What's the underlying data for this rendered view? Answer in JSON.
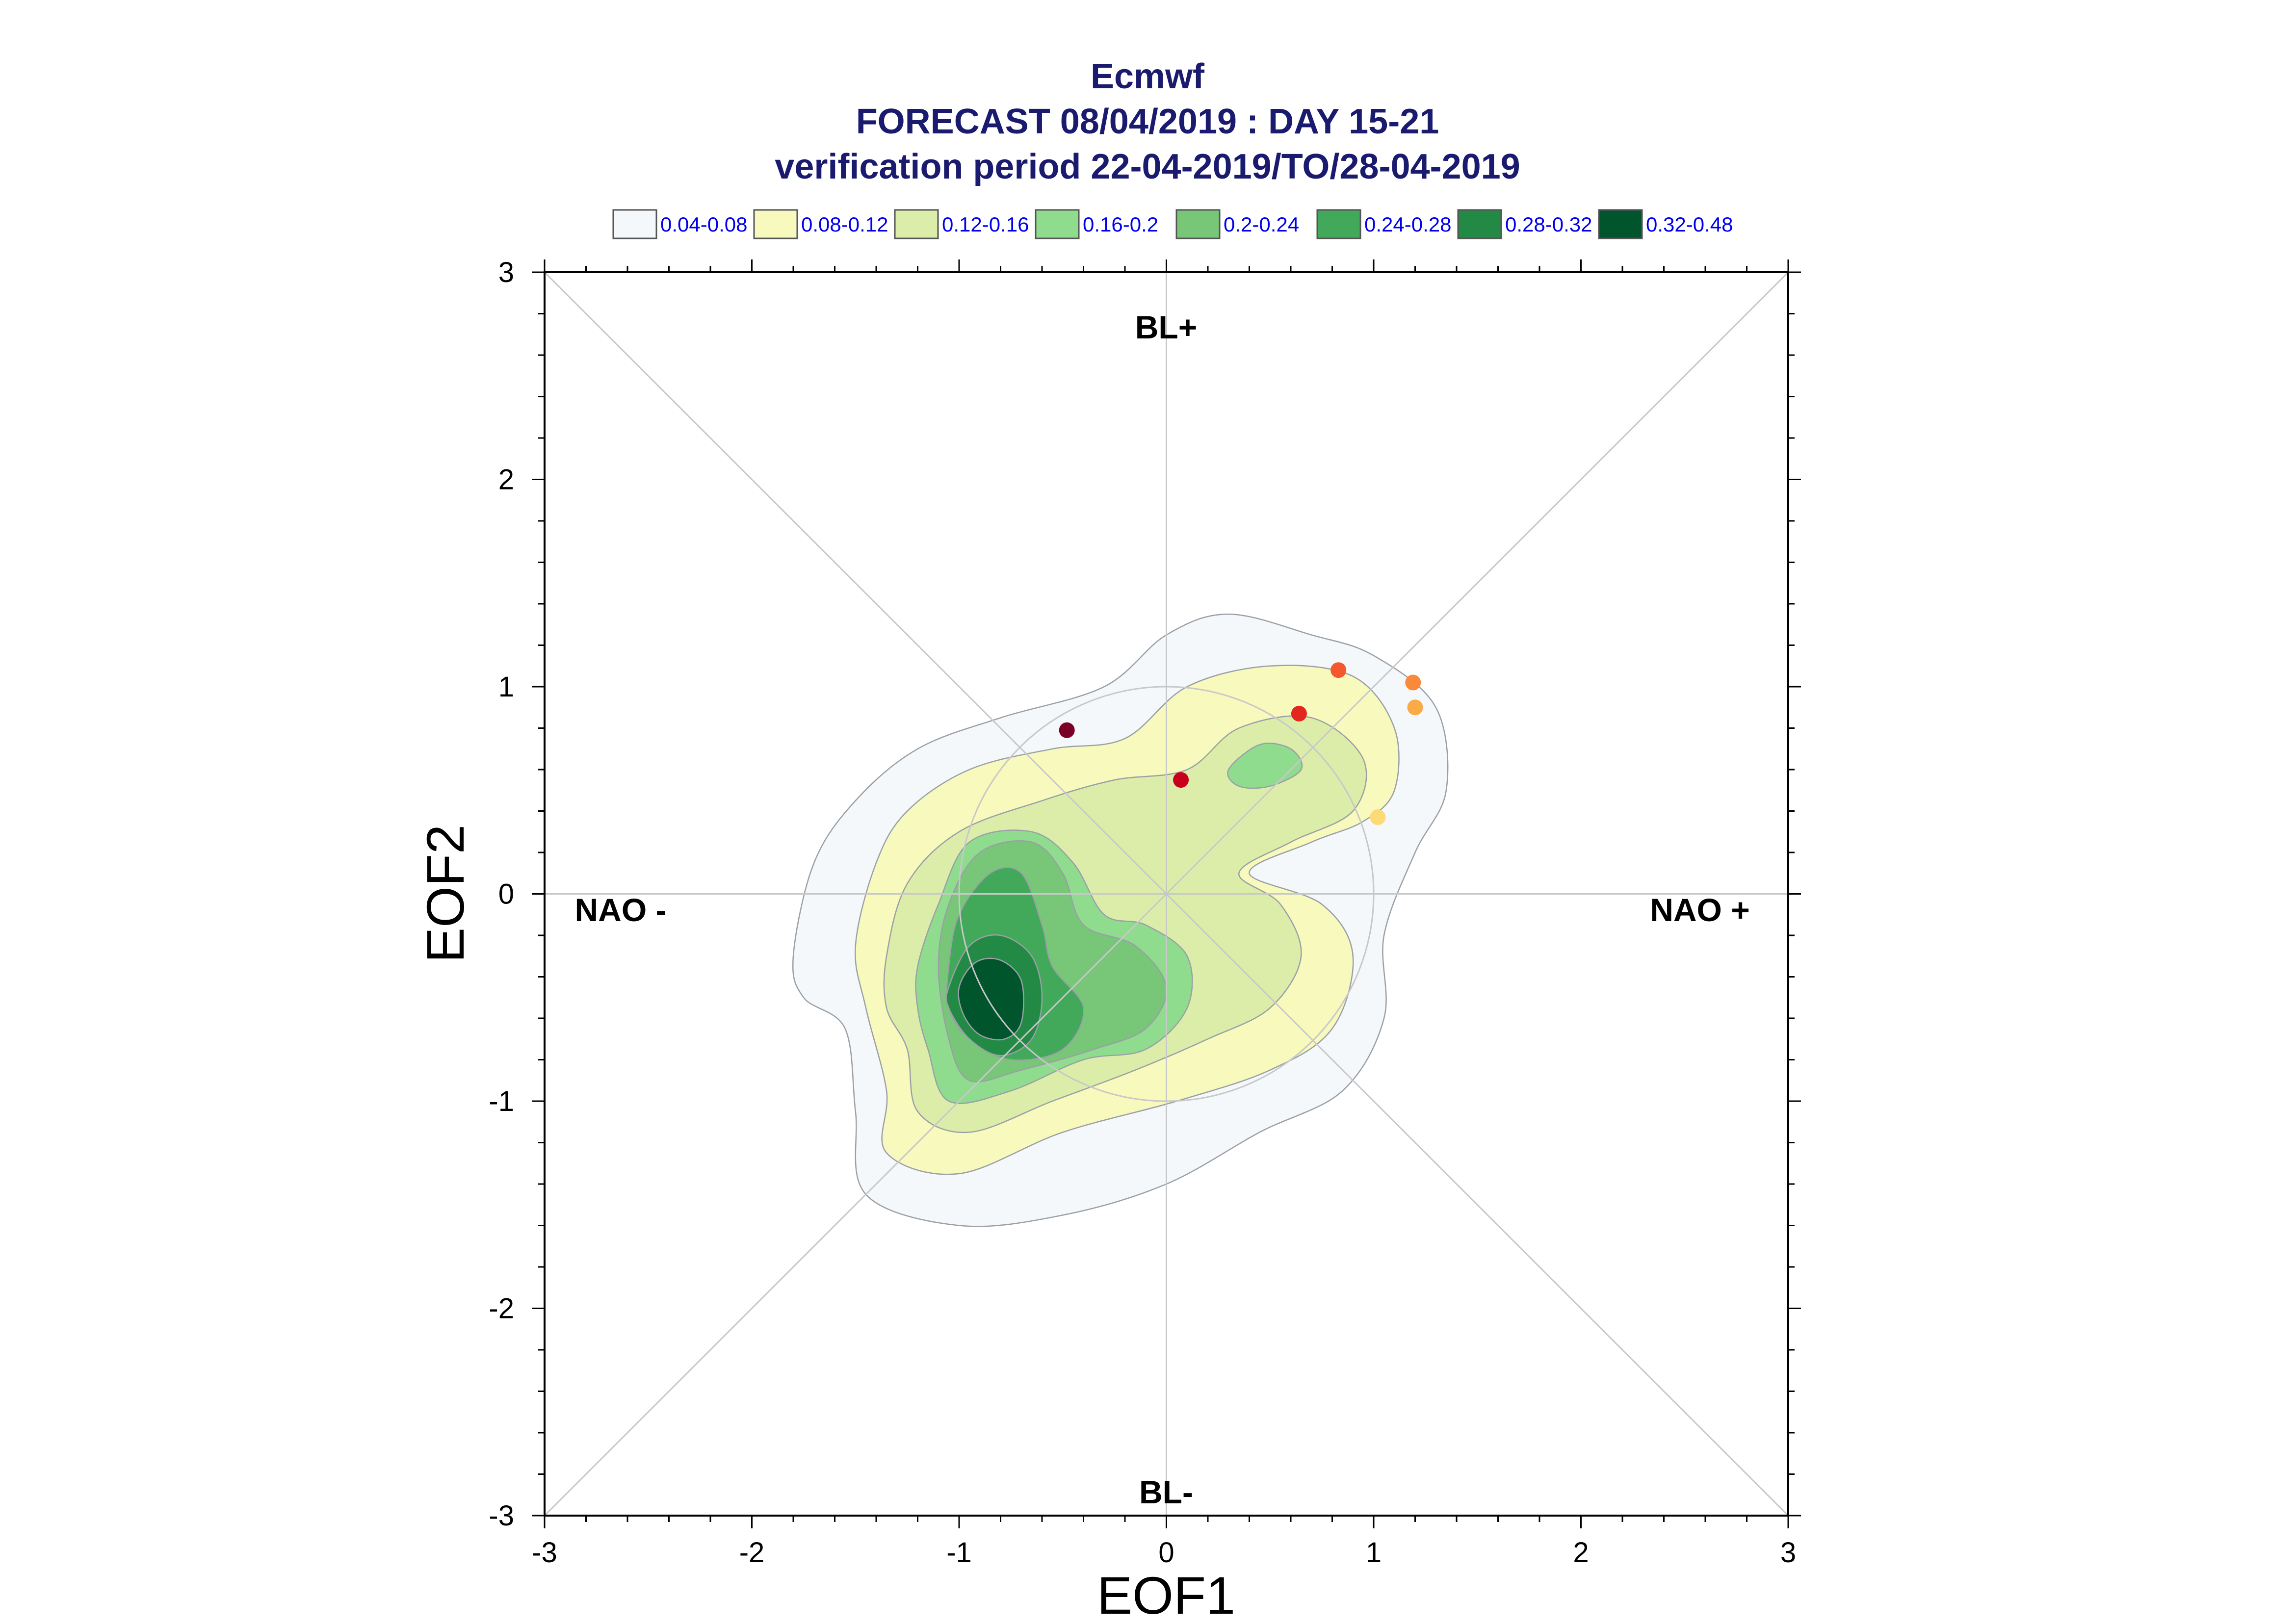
{
  "chart_data": {
    "type": "contour-scatter",
    "title_lines": [
      "Ecmwf",
      "FORECAST 08/04/2019 : DAY 15-21",
      "verification period 22-04-2019/TO/28-04-2019"
    ],
    "xlabel": "EOF1",
    "ylabel": "EOF2",
    "xlim": [
      -3,
      3
    ],
    "ylim": [
      -3,
      3
    ],
    "xticks": [
      "-3",
      "-2",
      "-1",
      "0",
      "1",
      "2",
      "3"
    ],
    "yticks": [
      "-3",
      "-2",
      "-1",
      "0",
      "1",
      "2",
      "3"
    ],
    "grid": false,
    "legend_position": "top",
    "regime_labels": {
      "top": "BL+",
      "bottom": "BL-",
      "left": "NAO -",
      "right": "NAO +"
    },
    "legend": [
      {
        "label": "0.04-0.08",
        "color": "#f4f8fb"
      },
      {
        "label": "0.08-0.12",
        "color": "#f7f9bd"
      },
      {
        "label": "0.12-0.16",
        "color": "#dcedaa"
      },
      {
        "label": "0.16-0.2",
        "color": "#90dc8e"
      },
      {
        "label": "0.2-0.24",
        "color": "#78c678"
      },
      {
        "label": "0.24-0.28",
        "color": "#42a95a"
      },
      {
        "label": "0.28-0.32",
        "color": "#238a45"
      },
      {
        "label": "0.32-0.48",
        "color": "#00552d"
      }
    ],
    "density_levels": [
      {
        "level": "0.04-0.08",
        "color": "#f4f8fb",
        "outline": [
          [
            -1.8,
            -0.3
          ],
          [
            -1.7,
            0.15
          ],
          [
            -1.5,
            0.45
          ],
          [
            -1.2,
            0.7
          ],
          [
            -0.8,
            0.85
          ],
          [
            -0.3,
            1.0
          ],
          [
            0.0,
            1.25
          ],
          [
            0.3,
            1.35
          ],
          [
            0.7,
            1.25
          ],
          [
            1.0,
            1.15
          ],
          [
            1.3,
            0.9
          ],
          [
            1.35,
            0.5
          ],
          [
            1.2,
            0.2
          ],
          [
            1.05,
            -0.2
          ],
          [
            1.05,
            -0.6
          ],
          [
            0.85,
            -0.95
          ],
          [
            0.45,
            -1.15
          ],
          [
            0.0,
            -1.4
          ],
          [
            -0.5,
            -1.55
          ],
          [
            -1.0,
            -1.6
          ],
          [
            -1.45,
            -1.45
          ],
          [
            -1.5,
            -1.05
          ],
          [
            -1.55,
            -0.65
          ],
          [
            -1.75,
            -0.5
          ]
        ]
      },
      {
        "level": "0.08-0.12",
        "color": "#f7f9bd",
        "outline": [
          [
            -1.5,
            -0.25
          ],
          [
            -1.4,
            0.15
          ],
          [
            -1.25,
            0.4
          ],
          [
            -0.95,
            0.6
          ],
          [
            -0.55,
            0.7
          ],
          [
            -0.2,
            0.75
          ],
          [
            0.1,
            1.0
          ],
          [
            0.5,
            1.1
          ],
          [
            0.9,
            1.05
          ],
          [
            1.1,
            0.8
          ],
          [
            1.1,
            0.5
          ],
          [
            0.95,
            0.35
          ],
          [
            0.7,
            0.25
          ],
          [
            0.4,
            0.1
          ],
          [
            0.75,
            -0.05
          ],
          [
            0.9,
            -0.3
          ],
          [
            0.8,
            -0.65
          ],
          [
            0.5,
            -0.85
          ],
          [
            0.05,
            -1.0
          ],
          [
            -0.5,
            -1.15
          ],
          [
            -1.0,
            -1.35
          ],
          [
            -1.35,
            -1.25
          ],
          [
            -1.35,
            -0.95
          ],
          [
            -1.45,
            -0.55
          ]
        ]
      },
      {
        "level": "0.12-0.16",
        "color": "#dcedaa",
        "outline": [
          [
            -1.35,
            -0.3
          ],
          [
            -1.25,
            0.05
          ],
          [
            -1.0,
            0.3
          ],
          [
            -0.6,
            0.45
          ],
          [
            -0.25,
            0.55
          ],
          [
            0.1,
            0.6
          ],
          [
            0.35,
            0.8
          ],
          [
            0.7,
            0.85
          ],
          [
            0.95,
            0.65
          ],
          [
            0.9,
            0.4
          ],
          [
            0.6,
            0.25
          ],
          [
            0.35,
            0.1
          ],
          [
            0.55,
            -0.05
          ],
          [
            0.65,
            -0.3
          ],
          [
            0.5,
            -0.55
          ],
          [
            0.2,
            -0.7
          ],
          [
            -0.15,
            -0.85
          ],
          [
            -0.55,
            -1.0
          ],
          [
            -0.95,
            -1.15
          ],
          [
            -1.2,
            -1.05
          ],
          [
            -1.25,
            -0.75
          ],
          [
            -1.35,
            -0.55
          ]
        ]
      },
      {
        "level": "0.16-0.2",
        "color": "#90dc8e",
        "outline": [
          [
            -1.2,
            -0.35
          ],
          [
            -1.1,
            -0.05
          ],
          [
            -0.95,
            0.25
          ],
          [
            -0.65,
            0.3
          ],
          [
            -0.45,
            0.15
          ],
          [
            -0.3,
            -0.1
          ],
          [
            -0.1,
            -0.15
          ],
          [
            0.1,
            -0.3
          ],
          [
            0.1,
            -0.55
          ],
          [
            -0.1,
            -0.75
          ],
          [
            -0.4,
            -0.8
          ],
          [
            -0.75,
            -0.95
          ],
          [
            -1.05,
            -1.0
          ],
          [
            -1.15,
            -0.75
          ],
          [
            -1.2,
            -0.55
          ]
        ]
      },
      {
        "level": "0.16-0.2 (secondary)",
        "color": "#90dc8e",
        "outline": [
          [
            0.3,
            0.6
          ],
          [
            0.45,
            0.72
          ],
          [
            0.6,
            0.7
          ],
          [
            0.65,
            0.6
          ],
          [
            0.5,
            0.52
          ],
          [
            0.35,
            0.52
          ]
        ]
      },
      {
        "level": "0.2-0.24",
        "color": "#78c678",
        "outline": [
          [
            -1.1,
            -0.35
          ],
          [
            -1.05,
            -0.05
          ],
          [
            -0.9,
            0.2
          ],
          [
            -0.65,
            0.25
          ],
          [
            -0.5,
            0.1
          ],
          [
            -0.4,
            -0.15
          ],
          [
            -0.15,
            -0.25
          ],
          [
            0.0,
            -0.45
          ],
          [
            -0.1,
            -0.65
          ],
          [
            -0.35,
            -0.75
          ],
          [
            -0.7,
            -0.85
          ],
          [
            -0.95,
            -0.9
          ],
          [
            -1.05,
            -0.7
          ]
        ]
      },
      {
        "level": "0.24-0.28",
        "color": "#42a95a",
        "outline": [
          [
            -1.05,
            -0.35
          ],
          [
            -1.0,
            -0.1
          ],
          [
            -0.85,
            0.1
          ],
          [
            -0.7,
            0.1
          ],
          [
            -0.6,
            -0.15
          ],
          [
            -0.55,
            -0.35
          ],
          [
            -0.4,
            -0.55
          ],
          [
            -0.5,
            -0.75
          ],
          [
            -0.75,
            -0.8
          ],
          [
            -0.95,
            -0.7
          ],
          [
            -1.05,
            -0.55
          ]
        ]
      },
      {
        "level": "0.28-0.32",
        "color": "#238a45",
        "outline": [
          [
            -1.05,
            -0.45
          ],
          [
            -0.95,
            -0.25
          ],
          [
            -0.8,
            -0.2
          ],
          [
            -0.65,
            -0.3
          ],
          [
            -0.6,
            -0.5
          ],
          [
            -0.65,
            -0.7
          ],
          [
            -0.8,
            -0.78
          ],
          [
            -0.95,
            -0.7
          ],
          [
            -1.05,
            -0.55
          ]
        ]
      },
      {
        "level": "0.32-0.48",
        "color": "#00552d",
        "outline": [
          [
            -1.0,
            -0.45
          ],
          [
            -0.92,
            -0.33
          ],
          [
            -0.8,
            -0.32
          ],
          [
            -0.7,
            -0.42
          ],
          [
            -0.7,
            -0.62
          ],
          [
            -0.78,
            -0.7
          ],
          [
            -0.9,
            -0.68
          ],
          [
            -0.98,
            -0.58
          ]
        ]
      }
    ],
    "points": [
      {
        "x": -0.48,
        "y": 0.79,
        "color": "#7b0025"
      },
      {
        "x": 0.07,
        "y": 0.55,
        "color": "#c8001e"
      },
      {
        "x": 0.64,
        "y": 0.87,
        "color": "#e3261e"
      },
      {
        "x": 0.83,
        "y": 1.08,
        "color": "#f5582c"
      },
      {
        "x": 1.19,
        "y": 1.02,
        "color": "#f88a3a"
      },
      {
        "x": 1.2,
        "y": 0.9,
        "color": "#fbaa48"
      },
      {
        "x": 1.02,
        "y": 0.37,
        "color": "#fed977"
      }
    ],
    "reference_circle_radius": 1.0
  }
}
